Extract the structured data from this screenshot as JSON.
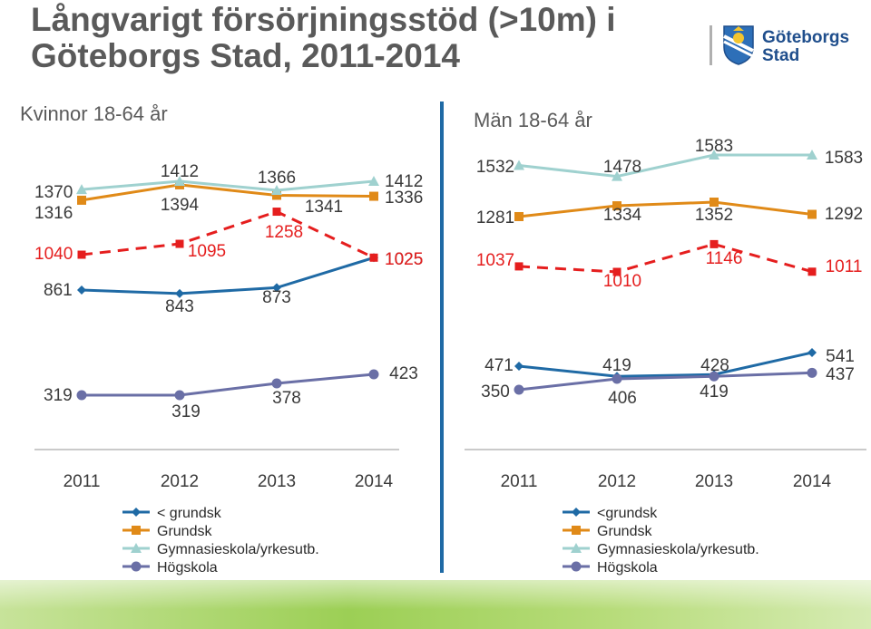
{
  "title": {
    "line1": "Långvarigt försörjningsstöd (>10m) i",
    "line2": "Göteborgs Stad, 2011-2014"
  },
  "logo": {
    "line1": "Göteborgs",
    "line2": "Stad",
    "icon": "city-seal-icon"
  },
  "colors": {
    "below_basic": "#1f6aa5",
    "basic": "#e08a18",
    "secondary": "#9fd1cf",
    "higher": "#6a6fa6",
    "highlight": "#e51e1e",
    "axis": "#b8b8b8",
    "divider": "#1f6aa5"
  },
  "chart_data": [
    {
      "type": "line",
      "title": "Kvinnor 18-64 år",
      "x": [
        "2011",
        "2012",
        "2013",
        "2014"
      ],
      "series": [
        {
          "name": "< grundsk",
          "values": [
            861,
            843,
            873,
            1025
          ]
        },
        {
          "name": "Grundsk",
          "values": [
            1316,
            1394,
            1341,
            1336
          ]
        },
        {
          "name": "Gymnasieskola/yrkesutb.",
          "values": [
            1370,
            1412,
            1366,
            1412
          ]
        },
        {
          "name": "Högskola",
          "values": [
            319,
            319,
            378,
            423
          ]
        }
      ],
      "highlight": {
        "values": [
          1040,
          1095,
          1258,
          1025
        ]
      }
    },
    {
      "type": "line",
      "title": "Män 18-64 år",
      "x": [
        "2011",
        "2012",
        "2013",
        "2014"
      ],
      "series": [
        {
          "name": "<grundsk",
          "values": [
            471,
            419,
            428,
            541
          ]
        },
        {
          "name": "Grundsk",
          "values": [
            1281,
            1334,
            1352,
            1292
          ]
        },
        {
          "name": "Gymnasieskola/yrkesutb.",
          "values": [
            1532,
            1478,
            1583,
            1583
          ]
        },
        {
          "name": "Högskola",
          "values": [
            350,
            406,
            419,
            437
          ]
        }
      ],
      "highlight": {
        "values": [
          1037,
          1010,
          1146,
          1011
        ]
      }
    }
  ]
}
